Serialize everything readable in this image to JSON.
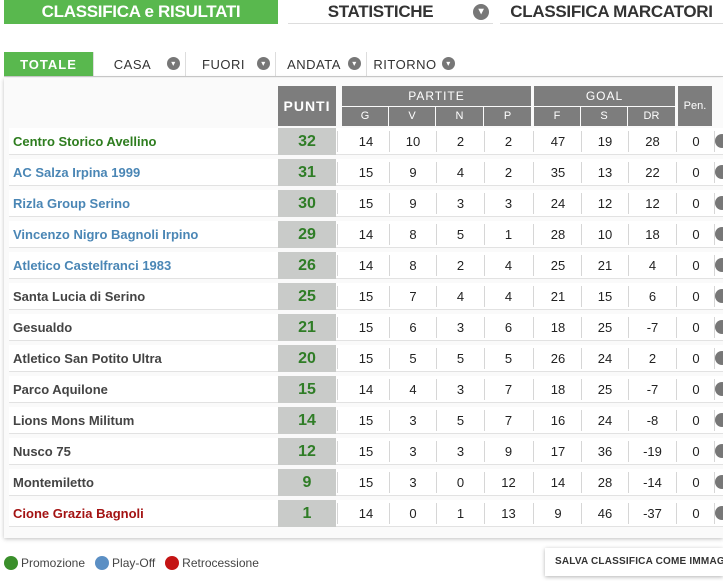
{
  "top_tabs": [
    {
      "label": "CLASSIFICA e RISULTATI"
    },
    {
      "label": "STATISTICHE"
    },
    {
      "label": "CLASSIFICA MARCATORI"
    }
  ],
  "sub_tabs": [
    {
      "label": "TOTALE"
    },
    {
      "label": "CASA"
    },
    {
      "label": "FUORI"
    },
    {
      "label": "ANDATA"
    },
    {
      "label": "RITORNO"
    }
  ],
  "table": {
    "header_punti": "PUNTI",
    "header_partite": "PARTITE",
    "header_goal": "GOAL",
    "header_pen": "Pen.",
    "sub_partite": [
      "G",
      "V",
      "N",
      "P"
    ],
    "sub_goal": [
      "F",
      "S",
      "DR"
    ],
    "rows": [
      {
        "team": "Centro Storico Avellino",
        "cat": "promo",
        "punti": "32",
        "g": "14",
        "v": "10",
        "n": "2",
        "p": "2",
        "f": "47",
        "s": "19",
        "dr": "28",
        "pen": "0"
      },
      {
        "team": "AC Salza Irpina 1999",
        "cat": "play",
        "punti": "31",
        "g": "15",
        "v": "9",
        "n": "4",
        "p": "2",
        "f": "35",
        "s": "13",
        "dr": "22",
        "pen": "0"
      },
      {
        "team": "Rizla Group Serino",
        "cat": "play",
        "punti": "30",
        "g": "15",
        "v": "9",
        "n": "3",
        "p": "3",
        "f": "24",
        "s": "12",
        "dr": "12",
        "pen": "0"
      },
      {
        "team": "Vincenzo Nigro Bagnoli Irpino",
        "cat": "play",
        "punti": "29",
        "g": "14",
        "v": "8",
        "n": "5",
        "p": "1",
        "f": "28",
        "s": "10",
        "dr": "18",
        "pen": "0"
      },
      {
        "team": "Atletico Castelfranci 1983",
        "cat": "play",
        "punti": "26",
        "g": "14",
        "v": "8",
        "n": "2",
        "p": "4",
        "f": "25",
        "s": "21",
        "dr": "4",
        "pen": "0"
      },
      {
        "team": "Santa Lucia di Serino",
        "cat": "none",
        "punti": "25",
        "g": "15",
        "v": "7",
        "n": "4",
        "p": "4",
        "f": "21",
        "s": "15",
        "dr": "6",
        "pen": "0"
      },
      {
        "team": "Gesualdo",
        "cat": "none",
        "punti": "21",
        "g": "15",
        "v": "6",
        "n": "3",
        "p": "6",
        "f": "18",
        "s": "25",
        "dr": "-7",
        "pen": "0"
      },
      {
        "team": "Atletico San Potito Ultra",
        "cat": "none",
        "punti": "20",
        "g": "15",
        "v": "5",
        "n": "5",
        "p": "5",
        "f": "26",
        "s": "24",
        "dr": "2",
        "pen": "0"
      },
      {
        "team": "Parco Aquilone",
        "cat": "none",
        "punti": "15",
        "g": "14",
        "v": "4",
        "n": "3",
        "p": "7",
        "f": "18",
        "s": "25",
        "dr": "-7",
        "pen": "0"
      },
      {
        "team": "Lions Mons Militum",
        "cat": "none",
        "punti": "14",
        "g": "15",
        "v": "3",
        "n": "5",
        "p": "7",
        "f": "16",
        "s": "24",
        "dr": "-8",
        "pen": "0"
      },
      {
        "team": "Nusco 75",
        "cat": "none",
        "punti": "12",
        "g": "15",
        "v": "3",
        "n": "3",
        "p": "9",
        "f": "17",
        "s": "36",
        "dr": "-19",
        "pen": "0"
      },
      {
        "team": "Montemiletto",
        "cat": "none",
        "punti": "9",
        "g": "15",
        "v": "3",
        "n": "0",
        "p": "12",
        "f": "14",
        "s": "28",
        "dr": "-14",
        "pen": "0"
      },
      {
        "team": "Cione Grazia Bagnoli",
        "cat": "retro",
        "punti": "1",
        "g": "14",
        "v": "0",
        "n": "1",
        "p": "13",
        "f": "9",
        "s": "46",
        "dr": "-37",
        "pen": "0"
      }
    ]
  },
  "legend": [
    {
      "label": "Promozione",
      "color": "#3a8f2b"
    },
    {
      "label": "Play-Off",
      "color": "#5b8fc4"
    },
    {
      "label": "Retrocessione",
      "color": "#c41414"
    }
  ],
  "save_button": "SALVA CLASSIFICA COME IMMAGINE"
}
